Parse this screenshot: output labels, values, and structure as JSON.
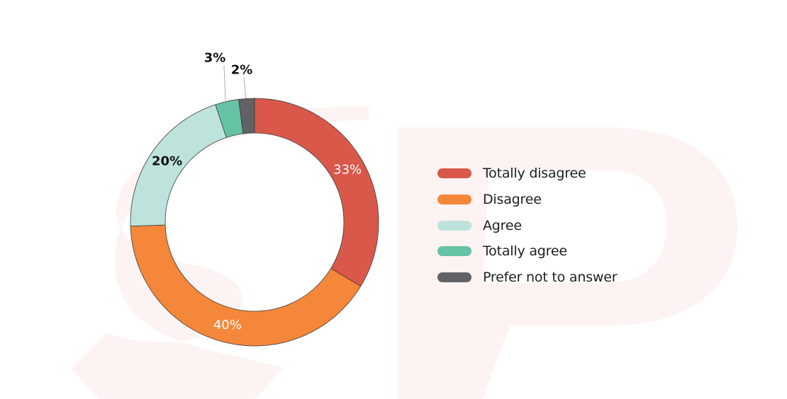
{
  "chart_data": {
    "type": "pie",
    "title": "",
    "legend_position": "right",
    "slices": [
      {
        "label": "Totally disagree",
        "value": 33,
        "value_label": "33%",
        "color": "#d9584a",
        "label_color": "#ffffff"
      },
      {
        "label": "Disagree",
        "value": 40,
        "value_label": "40%",
        "color": "#f5873a",
        "label_color": "#ffffff"
      },
      {
        "label": "Agree",
        "value": 20,
        "value_label": "20%",
        "color": "#bde3dc",
        "label_color": "#111111"
      },
      {
        "label": "Totally agree",
        "value": 3,
        "value_label": "3%",
        "color": "#66c2a5",
        "label_color": "#111111"
      },
      {
        "label": "Prefer not to answer",
        "value": 2,
        "value_label": "2%",
        "color": "#606266",
        "label_color": "#111111"
      }
    ]
  },
  "colors": {
    "watermark": "#fdf2f2",
    "slice_border": "#3a3a3a"
  }
}
